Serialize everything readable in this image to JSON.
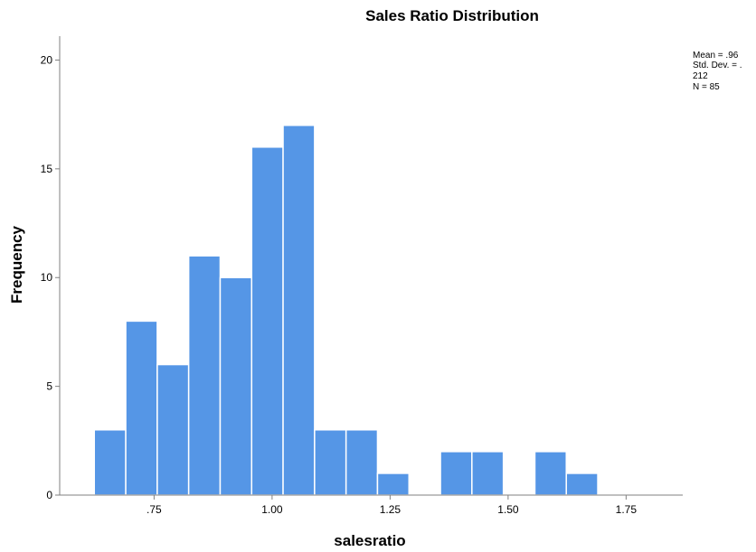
{
  "chart_data": {
    "type": "bar",
    "title": "Sales Ratio Distribution",
    "xlabel": "salesratio",
    "ylabel": "Frequency",
    "bin_width": 0.0667,
    "bins": [
      {
        "start": 0.6233,
        "end": 0.69,
        "count": 3
      },
      {
        "start": 0.69,
        "end": 0.7567,
        "count": 8
      },
      {
        "start": 0.7567,
        "end": 0.8233,
        "count": 6
      },
      {
        "start": 0.8233,
        "end": 0.89,
        "count": 11
      },
      {
        "start": 0.89,
        "end": 0.9567,
        "count": 10
      },
      {
        "start": 0.9567,
        "end": 1.0233,
        "count": 16
      },
      {
        "start": 1.0233,
        "end": 1.09,
        "count": 17
      },
      {
        "start": 1.09,
        "end": 1.1567,
        "count": 3
      },
      {
        "start": 1.1567,
        "end": 1.2233,
        "count": 3
      },
      {
        "start": 1.2233,
        "end": 1.29,
        "count": 1
      },
      {
        "start": 1.29,
        "end": 1.3567,
        "count": 0
      },
      {
        "start": 1.3567,
        "end": 1.4233,
        "count": 2
      },
      {
        "start": 1.4233,
        "end": 1.49,
        "count": 2
      },
      {
        "start": 1.49,
        "end": 1.5567,
        "count": 0
      },
      {
        "start": 1.5567,
        "end": 1.6233,
        "count": 2
      },
      {
        "start": 1.6233,
        "end": 1.69,
        "count": 1
      }
    ],
    "xlim": [
      0.55,
      1.87
    ],
    "ylim": [
      0,
      21.1
    ],
    "xticks": [
      {
        "value": 0.75,
        "label": ".75"
      },
      {
        "value": 1.0,
        "label": "1.00"
      },
      {
        "value": 1.25,
        "label": "1.25"
      },
      {
        "value": 1.5,
        "label": "1.50"
      },
      {
        "value": 1.75,
        "label": "1.75"
      }
    ],
    "yticks": [
      {
        "value": 0,
        "label": "0"
      },
      {
        "value": 5,
        "label": "5"
      },
      {
        "value": 10,
        "label": "10"
      },
      {
        "value": 15,
        "label": "15"
      },
      {
        "value": 20,
        "label": "20"
      }
    ],
    "stats": [
      "Mean = .96",
      "Std. Dev. = .",
      "212",
      "N = 85"
    ],
    "bar_color": "#5596e6",
    "bar_edge_color": "#ffffff",
    "axis_color": "#808080",
    "grid": false,
    "legend_position": "top-right"
  }
}
